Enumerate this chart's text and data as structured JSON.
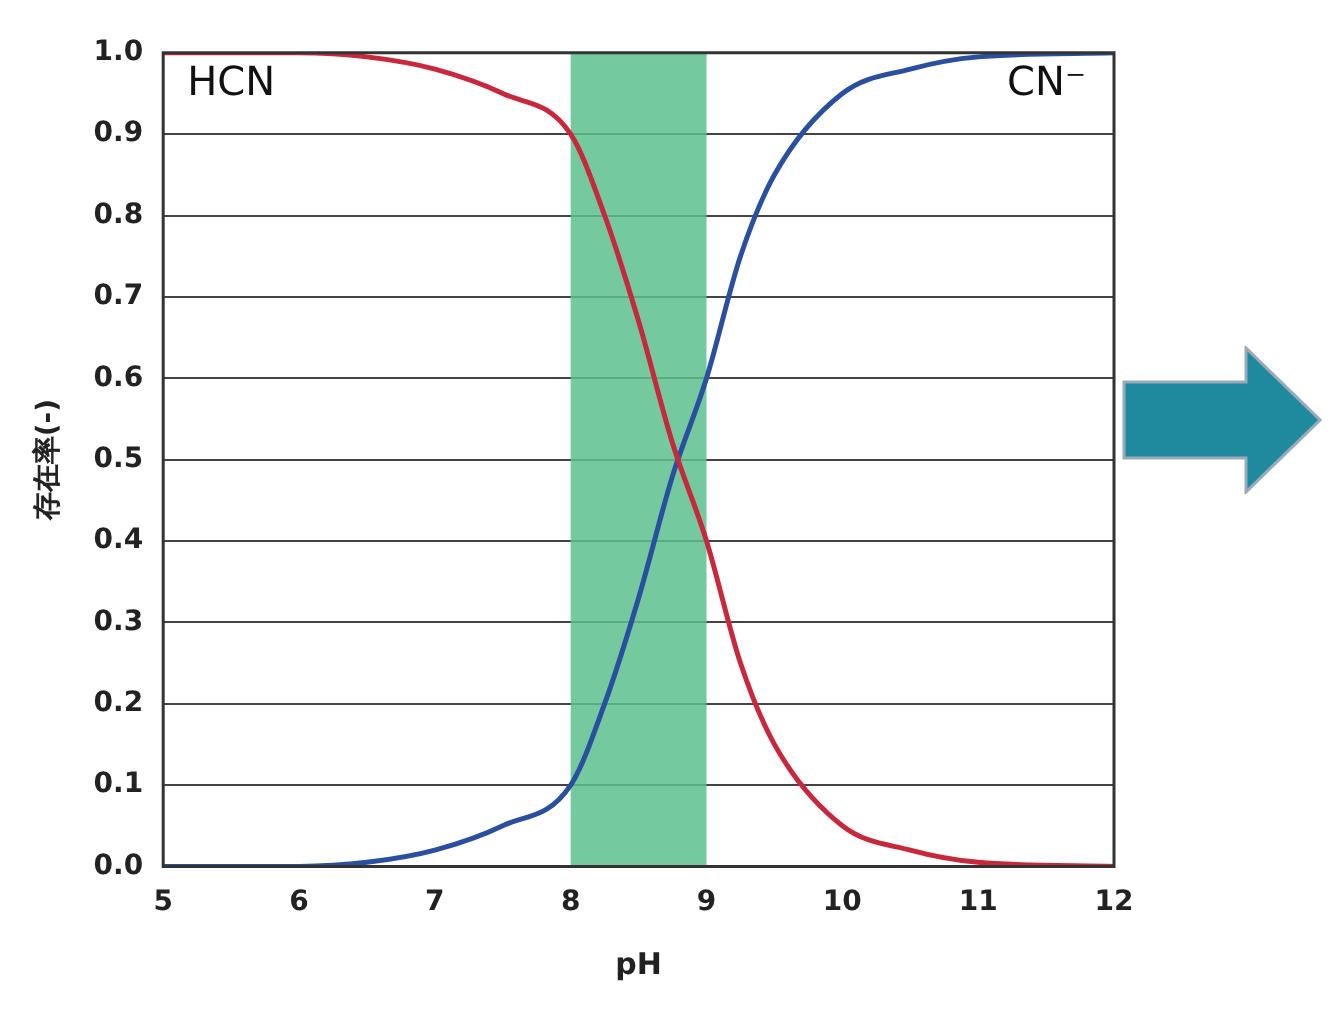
{
  "chart_data": {
    "type": "line",
    "xlabel": "pH",
    "ylabel": "存在率(-)",
    "xlim": [
      5,
      12
    ],
    "xticks": [
      5,
      6,
      7,
      8,
      9,
      10,
      11,
      12
    ],
    "ylim": [
      0,
      1
    ],
    "yticks": [
      {
        "value": 0,
        "label": "0.0"
      },
      {
        "value": 0.1,
        "label": "0.1"
      },
      {
        "value": 0.2,
        "label": "0.2"
      },
      {
        "value": 0.3,
        "label": "0.3"
      },
      {
        "value": 0.4,
        "label": "0.4"
      },
      {
        "value": 0.5,
        "label": "0.5"
      },
      {
        "value": 0.6,
        "label": "0.6"
      },
      {
        "value": 0.7,
        "label": "0.7"
      },
      {
        "value": 0.8,
        "label": "0.8"
      },
      {
        "value": 0.9,
        "label": "0.9"
      },
      {
        "value": 1,
        "label": "1.0"
      }
    ],
    "grid": "y",
    "legend": false,
    "marker": "none",
    "line_style": "solid",
    "bands": [
      {
        "axis": "x",
        "from": 8,
        "to": 9,
        "color": "#5cc08e"
      }
    ],
    "series": [
      {
        "name": "HCN",
        "color": "#c8283c",
        "x": [
          5,
          6,
          6.5,
          7,
          7.5,
          8,
          8.25,
          8.5,
          8.75,
          9,
          9.25,
          9.5,
          10,
          10.5,
          11,
          12
        ],
        "values": [
          1,
          1,
          0.995,
          0.98,
          0.95,
          0.9,
          0.8,
          0.67,
          0.52,
          0.4,
          0.25,
          0.15,
          0.05,
          0.02,
          0.005,
          0
        ]
      },
      {
        "name": "CN⁻",
        "color": "#2a4f9e",
        "x": [
          5,
          6,
          6.5,
          7,
          7.5,
          8,
          8.25,
          8.5,
          8.75,
          9,
          9.25,
          9.5,
          10,
          10.5,
          11,
          12
        ],
        "values": [
          0,
          0,
          0.005,
          0.02,
          0.05,
          0.1,
          0.2,
          0.33,
          0.48,
          0.6,
          0.75,
          0.85,
          0.95,
          0.98,
          0.995,
          1
        ]
      }
    ]
  }
}
